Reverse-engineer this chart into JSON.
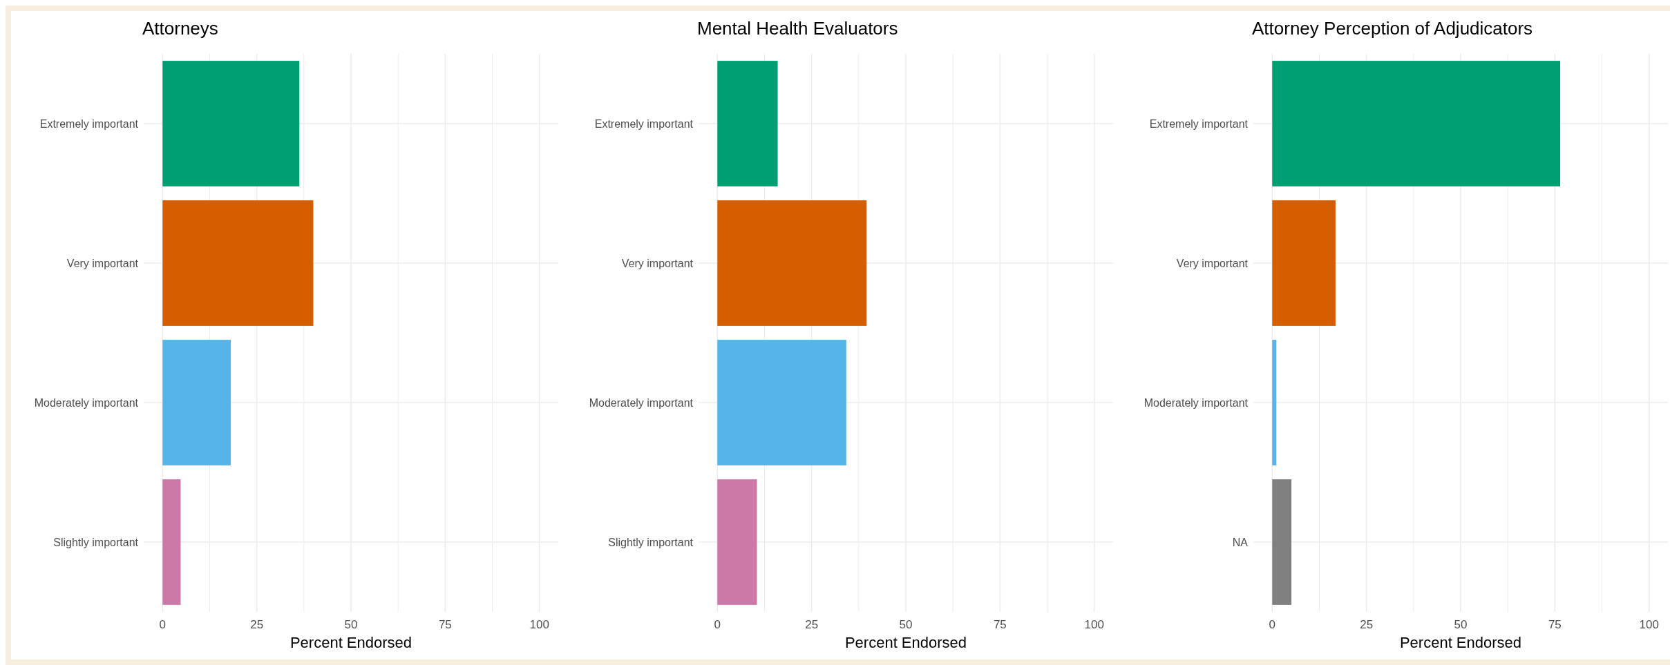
{
  "chart_data": [
    {
      "type": "bar",
      "orientation": "horizontal",
      "title": "Attorneys",
      "xlabel": "Percent Endorsed",
      "categories": [
        "Extremely important",
        "Very important",
        "Moderately important",
        "Slightly important"
      ],
      "values": [
        36.3,
        40,
        18.1,
        4.8
      ],
      "colors": [
        "#009e73",
        "#d55e00",
        "#56b4e9",
        "#cc79a7"
      ],
      "xlim": [
        -5,
        105
      ],
      "xticks": [
        0,
        {
          "value": 12.5,
          "label": null
        },
        25,
        {
          "value": 37.5,
          "label": null
        },
        50,
        {
          "value": 62.5,
          "label": null
        },
        75,
        {
          "value": 87.5,
          "label": null
        },
        100
      ],
      "grid": true
    },
    {
      "type": "bar",
      "orientation": "horizontal",
      "title": "Mental Health Evaluators",
      "xlabel": "Percent Endorsed",
      "categories": [
        "Extremely important",
        "Very important",
        "Moderately important",
        "Slightly important"
      ],
      "values": [
        16,
        39.6,
        34.2,
        10.5
      ],
      "colors": [
        "#009e73",
        "#d55e00",
        "#56b4e9",
        "#cc79a7"
      ],
      "xlim": [
        -5,
        105
      ],
      "xticks": [
        0,
        {
          "value": 12.5,
          "label": null
        },
        25,
        {
          "value": 37.5,
          "label": null
        },
        50,
        {
          "value": 62.5,
          "label": null
        },
        75,
        {
          "value": 87.5,
          "label": null
        },
        100
      ],
      "grid": true
    },
    {
      "type": "bar",
      "orientation": "horizontal",
      "title": "Attorney Perception of Adjudicators",
      "xlabel": "Percent Endorsed",
      "categories": [
        "Extremely important",
        "Very important",
        "Moderately important",
        "NA"
      ],
      "values": [
        76.4,
        16.8,
        1.1,
        5.1
      ],
      "colors": [
        "#009e73",
        "#d55e00",
        "#56b4e9",
        "#808080"
      ],
      "xlim": [
        -5,
        105
      ],
      "xticks": [
        0,
        {
          "value": 12.5,
          "label": null
        },
        25,
        {
          "value": 37.5,
          "label": null
        },
        50,
        {
          "value": 62.5,
          "label": null
        },
        75,
        {
          "value": 87.5,
          "label": null
        },
        100
      ],
      "grid": true
    }
  ]
}
